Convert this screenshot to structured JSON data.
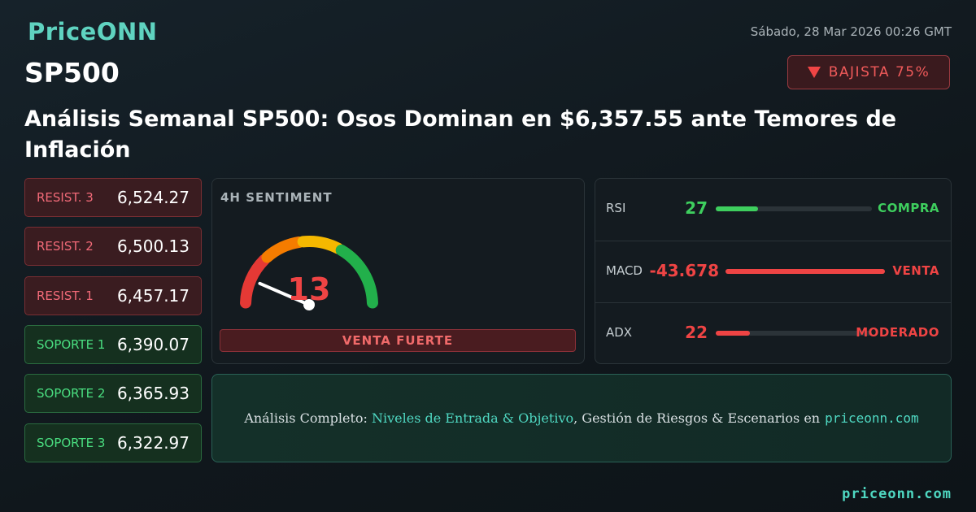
{
  "header": {
    "brand": "PriceONN",
    "date": "Sábado, 28 Mar 2026 00:26 GMT",
    "symbol": "SP500",
    "badge": "BAJISTA 75%"
  },
  "title": "Análisis Semanal SP500: Osos Dominan en $6,357.55 ante Temores de Inflación",
  "levels": [
    {
      "label": "RESIST. 3",
      "value": "6,524.27",
      "kind": "resistance"
    },
    {
      "label": "RESIST. 2",
      "value": "6,500.13",
      "kind": "resistance"
    },
    {
      "label": "RESIST. 1",
      "value": "6,457.17",
      "kind": "resistance"
    },
    {
      "label": "SOPORTE 1",
      "value": "6,390.07",
      "kind": "support"
    },
    {
      "label": "SOPORTE 2",
      "value": "6,365.93",
      "kind": "support"
    },
    {
      "label": "SOPORTE 3",
      "value": "6,322.97",
      "kind": "support"
    }
  ],
  "sentiment": {
    "label": "4H SENTIMENT",
    "value": 13,
    "verdict": "VENTA FUERTE"
  },
  "indicators": [
    {
      "name": "RSI",
      "value": 27,
      "signal": "COMPRA",
      "color": "#3ecf5e"
    },
    {
      "name": "MACD",
      "value": -43.678,
      "signal": "VENTA",
      "color": "#ef4444"
    },
    {
      "name": "ADX",
      "value": 22,
      "signal": "MODERADO",
      "color": "#ef4444"
    }
  ],
  "cta": [
    "Análisis Completo:",
    "Niveles de Entrada & Objetivo",
    ", Gestión de Riesgos & Escenarios en",
    "priceonn.com"
  ],
  "footer": "priceonn.com"
}
